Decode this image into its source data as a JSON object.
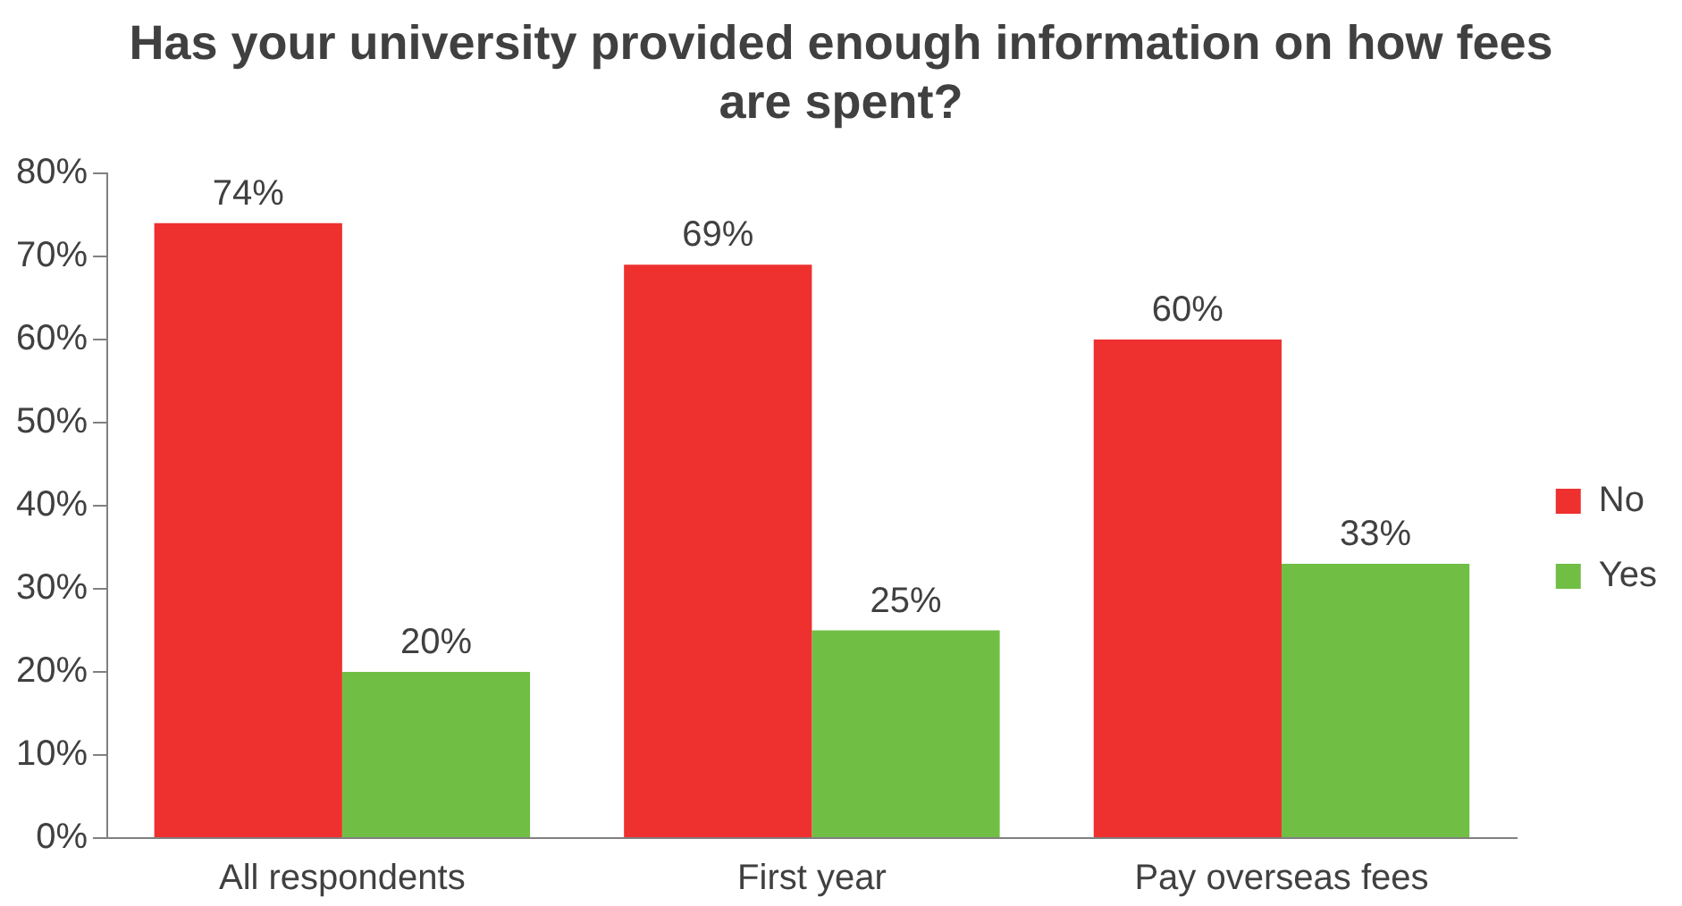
{
  "chart_data": {
    "type": "bar",
    "title": "Has your university provided enough information on how fees are spent?",
    "categories": [
      "All respondents",
      "First year",
      "Pay overseas fees"
    ],
    "series": [
      {
        "name": "No",
        "color": "#ee302e",
        "values": [
          74,
          69,
          60
        ]
      },
      {
        "name": "Yes",
        "color": "#70bf44",
        "values": [
          20,
          25,
          33
        ]
      }
    ],
    "value_labels": [
      [
        "74%",
        "69%",
        "60%"
      ],
      [
        "20%",
        "25%",
        "33%"
      ]
    ],
    "ylim": [
      0,
      80
    ],
    "yticks": [
      {
        "value": 0,
        "label": "0%"
      },
      {
        "value": 10,
        "label": "10%"
      },
      {
        "value": 20,
        "label": "20%"
      },
      {
        "value": 30,
        "label": "30%"
      },
      {
        "value": 40,
        "label": "40%"
      },
      {
        "value": 50,
        "label": "50%"
      },
      {
        "value": 60,
        "label": "60%"
      },
      {
        "value": 70,
        "label": "70%"
      },
      {
        "value": 80,
        "label": "80%"
      }
    ],
    "grid": false,
    "legend": "right"
  }
}
